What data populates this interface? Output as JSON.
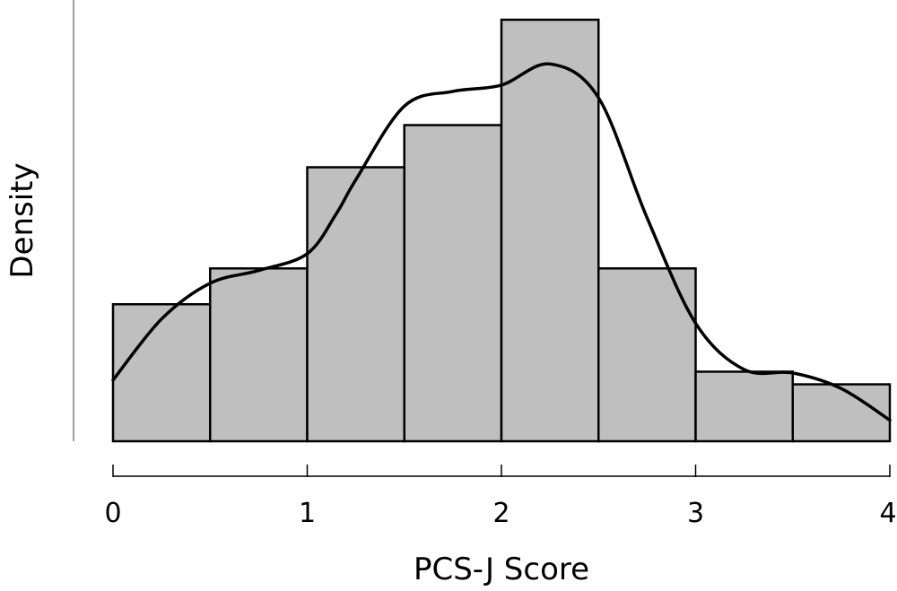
{
  "chart_data": {
    "type": "bar",
    "xlabel": "PCS-J Score",
    "ylabel": "Density",
    "xlim": [
      0,
      4
    ],
    "x_ticks": [
      0,
      1,
      2,
      3,
      4
    ],
    "y_ticks_shown": false,
    "bin_width": 0.5,
    "bins": [
      {
        "start": 0.0,
        "end": 0.5,
        "height": 0.325
      },
      {
        "start": 0.5,
        "end": 1.0,
        "height": 0.41
      },
      {
        "start": 1.0,
        "end": 1.5,
        "height": 0.65
      },
      {
        "start": 1.5,
        "end": 2.0,
        "height": 0.75
      },
      {
        "start": 2.0,
        "end": 2.5,
        "height": 1.0
      },
      {
        "start": 2.5,
        "end": 3.0,
        "height": 0.41
      },
      {
        "start": 3.0,
        "end": 3.5,
        "height": 0.165
      },
      {
        "start": 3.5,
        "end": 4.0,
        "height": 0.135
      }
    ],
    "density_curve": {
      "x": [
        0.0,
        0.25,
        0.5,
        0.75,
        1.0,
        1.15,
        1.25,
        1.5,
        1.75,
        2.0,
        2.25,
        2.5,
        2.75,
        3.0,
        3.25,
        3.5,
        3.75,
        4.0
      ],
      "y": [
        0.145,
        0.29,
        0.375,
        0.405,
        0.445,
        0.54,
        0.62,
        0.795,
        0.83,
        0.845,
        0.895,
        0.815,
        0.53,
        0.28,
        0.17,
        0.162,
        0.125,
        0.05
      ]
    },
    "grid": false,
    "legend": "none"
  }
}
